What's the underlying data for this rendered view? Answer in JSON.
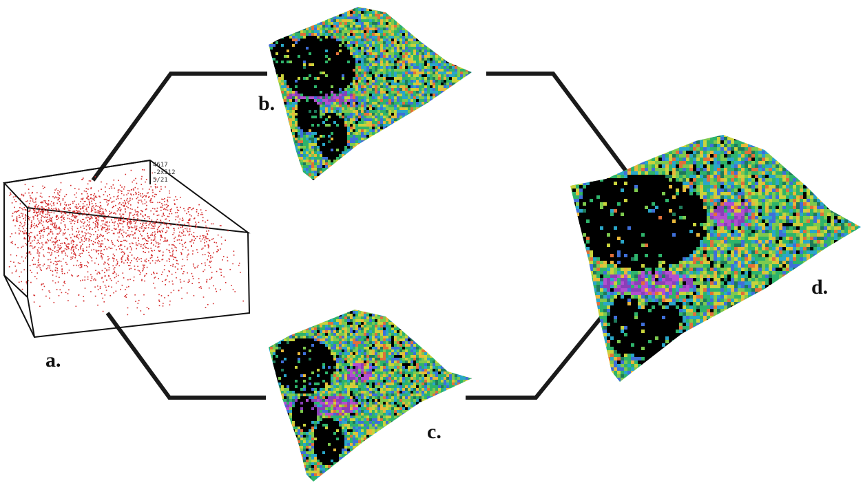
{
  "panels": {
    "a": {
      "label": "a.",
      "box_ticks": [
        "4617",
        "-2x512",
        "5/21"
      ]
    },
    "b": {
      "label": "b."
    },
    "c": {
      "label": "c."
    },
    "d": {
      "label": "d."
    }
  },
  "colors": {
    "connector": "#1a1a1a",
    "point_cloud": "#d42a2a",
    "box_edge": "#111111",
    "terrain_palette": [
      "#000000",
      "#1f7a5a",
      "#2eb36b",
      "#7dc94e",
      "#c9d33c",
      "#e8b83a",
      "#e0703a",
      "#3f6fd8",
      "#2aa6c8",
      "#8a3fb8",
      "#b24fd0"
    ]
  }
}
